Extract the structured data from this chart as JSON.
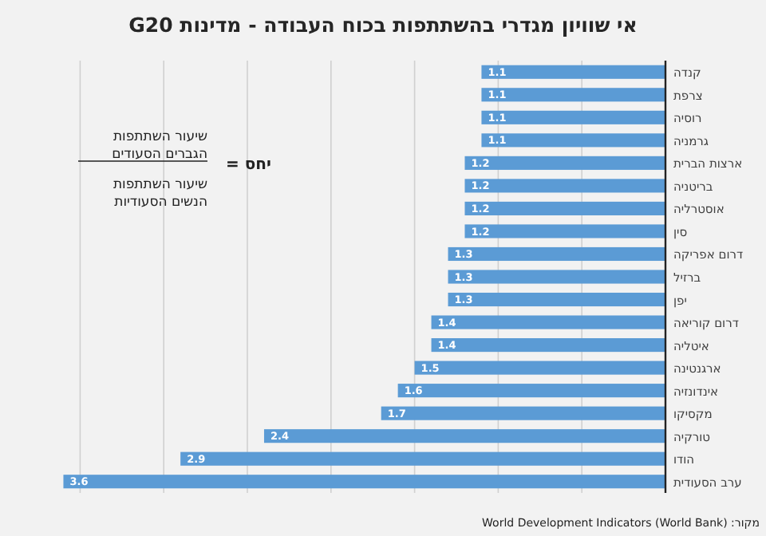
{
  "chart_data": {
    "type": "bar",
    "orientation": "horizontal",
    "title": "אי שוויון מגדרי בהשתתפות בכוח העבודה - מדינות G20",
    "categories": [
      "קנדה",
      "צרפת",
      "רוסיה",
      "גרמניה",
      "ארצות הברית",
      "בריטניה",
      "אוסטרליה",
      "סין",
      "דרום אפריקה",
      "ברזיל",
      "יפן",
      "דרום קוריאה",
      "איטליה",
      "ארגנטינה",
      "אינדונזיה",
      "מקסיקו",
      "טורקיה",
      "הודו",
      "ערב הסעודית"
    ],
    "values": [
      1.1,
      1.1,
      1.1,
      1.1,
      1.2,
      1.2,
      1.2,
      1.2,
      1.3,
      1.3,
      1.3,
      1.4,
      1.4,
      1.5,
      1.6,
      1.7,
      2.4,
      2.9,
      3.6
    ],
    "color": "#5b9bd5",
    "data_labels": true,
    "grid": "x",
    "tick_labels": "y",
    "annotations": [
      "יחס =",
      "שיעור השתתפות\nהגברים הסעודים",
      "שיעור השתתפות\nהנשים הסעודיות",
      "מקור: World Development Indicators (World Bank)"
    ]
  }
}
